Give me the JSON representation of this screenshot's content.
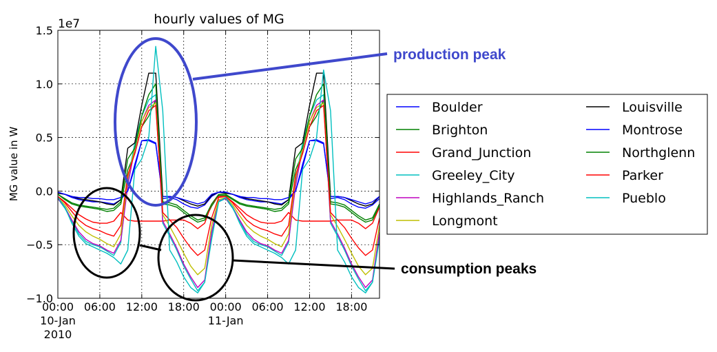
{
  "chart_data": {
    "type": "line",
    "title": "hourly values of MG",
    "ylabel": "MG value in W",
    "xlabel": "",
    "scale_label": "1e7",
    "ylim": [
      -1.0,
      1.5
    ],
    "xlim": [
      0,
      46
    ],
    "grid": true,
    "legend_placement": "right, outside plot",
    "y_ticks": [
      {
        "value": -1.0,
        "label": "−1.0"
      },
      {
        "value": -0.5,
        "label": "−0.5"
      },
      {
        "value": 0.0,
        "label": "0.0"
      },
      {
        "value": 0.5,
        "label": "0.5"
      },
      {
        "value": 1.0,
        "label": "1.0"
      },
      {
        "value": 1.5,
        "label": "1.5"
      }
    ],
    "x_ticks": [
      {
        "hour": 0,
        "label": "00:00",
        "sub": [
          "10-Jan",
          "2010"
        ]
      },
      {
        "hour": 6,
        "label": "06:00",
        "sub": []
      },
      {
        "hour": 12,
        "label": "12:00",
        "sub": []
      },
      {
        "hour": 18,
        "label": "18:00",
        "sub": []
      },
      {
        "hour": 24,
        "label": "00:00",
        "sub": [
          "11-Jan"
        ]
      },
      {
        "hour": 30,
        "label": "06:00",
        "sub": []
      },
      {
        "hour": 36,
        "label": "12:00",
        "sub": []
      },
      {
        "hour": 42,
        "label": "18:00",
        "sub": []
      }
    ],
    "x": [
      0,
      1,
      2,
      3,
      4,
      5,
      6,
      7,
      8,
      9,
      10,
      11,
      12,
      13,
      14,
      15,
      16,
      17,
      18,
      19,
      20,
      21,
      22,
      23,
      24,
      25,
      26,
      27,
      28,
      29,
      30,
      31,
      32,
      33,
      34,
      35,
      36,
      37,
      38,
      39,
      40,
      41,
      42,
      43,
      44,
      45,
      46
    ],
    "series": [
      {
        "name": "Boulder",
        "color": "#0000ff",
        "values": [
          -0.01,
          -0.03,
          -0.06,
          -0.08,
          -0.09,
          -0.1,
          -0.1,
          -0.11,
          -0.12,
          -0.08,
          0.0,
          0.25,
          0.47,
          0.48,
          0.45,
          -0.07,
          -0.06,
          -0.08,
          -0.12,
          -0.15,
          -0.16,
          -0.13,
          -0.05,
          -0.01,
          -0.01,
          -0.03,
          -0.06,
          -0.08,
          -0.09,
          -0.1,
          -0.1,
          -0.11,
          -0.12,
          -0.08,
          0.0,
          0.25,
          0.47,
          0.48,
          0.45,
          -0.07,
          -0.06,
          -0.08,
          -0.12,
          -0.15,
          -0.16,
          -0.13,
          -0.07
        ]
      },
      {
        "name": "Brighton",
        "color": "#008000",
        "values": [
          -0.03,
          -0.08,
          -0.12,
          -0.14,
          -0.15,
          -0.16,
          -0.17,
          -0.19,
          -0.18,
          -0.12,
          0.2,
          0.35,
          0.6,
          0.7,
          0.85,
          -0.12,
          -0.13,
          -0.15,
          -0.2,
          -0.25,
          -0.29,
          -0.27,
          -0.14,
          -0.04,
          -0.04,
          -0.08,
          -0.12,
          -0.14,
          -0.15,
          -0.16,
          -0.17,
          -0.19,
          -0.18,
          -0.12,
          0.2,
          0.35,
          0.6,
          0.7,
          0.85,
          -0.12,
          -0.13,
          -0.15,
          -0.2,
          -0.25,
          -0.29,
          -0.27,
          -0.14
        ]
      },
      {
        "name": "Grand_Junction",
        "color": "#ff0000",
        "values": [
          -0.05,
          -0.1,
          -0.16,
          -0.22,
          -0.26,
          -0.29,
          -0.3,
          -0.3,
          -0.28,
          -0.2,
          -0.27,
          -0.28,
          -0.28,
          -0.28,
          -0.28,
          -0.28,
          -0.27,
          -0.27,
          -0.27,
          -0.3,
          -0.35,
          -0.3,
          -0.12,
          -0.05,
          -0.05,
          -0.1,
          -0.16,
          -0.22,
          -0.26,
          -0.29,
          -0.3,
          -0.3,
          -0.28,
          -0.2,
          -0.27,
          -0.28,
          -0.28,
          -0.28,
          -0.28,
          -0.28,
          -0.27,
          -0.27,
          -0.27,
          -0.3,
          -0.35,
          -0.3,
          -0.15
        ]
      },
      {
        "name": "Greeley_City",
        "color": "#00bfbf",
        "values": [
          -0.07,
          -0.16,
          -0.28,
          -0.4,
          -0.47,
          -0.5,
          -0.52,
          -0.56,
          -0.6,
          -0.48,
          0.1,
          0.45,
          0.7,
          0.85,
          0.9,
          -0.3,
          -0.42,
          -0.55,
          -0.7,
          -0.82,
          -0.93,
          -0.85,
          -0.4,
          -0.1,
          -0.07,
          -0.16,
          -0.28,
          -0.4,
          -0.47,
          -0.5,
          -0.52,
          -0.56,
          -0.6,
          -0.48,
          0.1,
          0.45,
          0.7,
          0.85,
          0.9,
          -0.3,
          -0.42,
          -0.55,
          -0.7,
          -0.82,
          -0.93,
          -0.85,
          -0.4
        ]
      },
      {
        "name": "Highlands_Ranch",
        "color": "#bf00bf",
        "values": [
          -0.07,
          -0.15,
          -0.27,
          -0.38,
          -0.45,
          -0.49,
          -0.51,
          -0.55,
          -0.58,
          -0.46,
          0.05,
          0.4,
          0.65,
          0.8,
          0.85,
          -0.28,
          -0.4,
          -0.53,
          -0.68,
          -0.8,
          -0.9,
          -0.83,
          -0.38,
          -0.09,
          -0.07,
          -0.15,
          -0.27,
          -0.38,
          -0.45,
          -0.49,
          -0.51,
          -0.55,
          -0.58,
          -0.46,
          0.05,
          0.4,
          0.65,
          0.8,
          0.85,
          -0.28,
          -0.4,
          -0.53,
          -0.68,
          -0.8,
          -0.9,
          -0.83,
          -0.38
        ]
      },
      {
        "name": "Longmont",
        "color": "#bfbf00",
        "values": [
          -0.06,
          -0.13,
          -0.23,
          -0.32,
          -0.38,
          -0.42,
          -0.45,
          -0.49,
          -0.52,
          -0.4,
          0.12,
          0.4,
          0.65,
          0.78,
          0.82,
          -0.22,
          -0.33,
          -0.45,
          -0.58,
          -0.7,
          -0.78,
          -0.72,
          -0.32,
          -0.08,
          -0.06,
          -0.13,
          -0.23,
          -0.32,
          -0.38,
          -0.42,
          -0.45,
          -0.49,
          -0.52,
          -0.4,
          0.12,
          0.4,
          0.65,
          0.78,
          0.82,
          -0.22,
          -0.33,
          -0.45,
          -0.58,
          -0.7,
          -0.78,
          -0.72,
          -0.32
        ]
      },
      {
        "name": "Louisville",
        "color": "#000000",
        "values": [
          -0.02,
          -0.03,
          -0.05,
          -0.07,
          -0.08,
          -0.09,
          -0.1,
          -0.12,
          -0.13,
          -0.08,
          0.4,
          0.45,
          0.8,
          1.1,
          1.1,
          -0.05,
          -0.05,
          -0.06,
          -0.09,
          -0.12,
          -0.14,
          -0.12,
          -0.04,
          -0.01,
          -0.02,
          -0.03,
          -0.05,
          -0.07,
          -0.08,
          -0.09,
          -0.1,
          -0.12,
          -0.13,
          -0.08,
          0.4,
          0.45,
          0.8,
          1.1,
          1.1,
          -0.05,
          -0.05,
          -0.06,
          -0.09,
          -0.12,
          -0.14,
          -0.12,
          -0.05
        ]
      },
      {
        "name": "Montrose",
        "color": "#0000ff",
        "values": [
          -0.01,
          -0.03,
          -0.05,
          -0.06,
          -0.06,
          -0.07,
          -0.07,
          -0.08,
          -0.08,
          -0.06,
          0.0,
          0.22,
          0.47,
          0.47,
          0.44,
          -0.05,
          -0.05,
          -0.06,
          -0.08,
          -0.1,
          -0.12,
          -0.1,
          -0.03,
          -0.01,
          -0.01,
          -0.03,
          -0.05,
          -0.06,
          -0.06,
          -0.07,
          -0.07,
          -0.08,
          -0.08,
          -0.06,
          0.0,
          0.22,
          0.47,
          0.47,
          0.44,
          -0.05,
          -0.05,
          -0.06,
          -0.08,
          -0.1,
          -0.12,
          -0.1,
          -0.05
        ]
      },
      {
        "name": "Northglenn",
        "color": "#008000",
        "values": [
          -0.03,
          -0.07,
          -0.11,
          -0.13,
          -0.14,
          -0.15,
          -0.16,
          -0.17,
          -0.16,
          -0.1,
          0.3,
          0.4,
          0.7,
          0.9,
          1.0,
          -0.1,
          -0.11,
          -0.13,
          -0.18,
          -0.23,
          -0.27,
          -0.25,
          -0.12,
          -0.03,
          -0.03,
          -0.07,
          -0.11,
          -0.13,
          -0.14,
          -0.15,
          -0.16,
          -0.17,
          -0.16,
          -0.1,
          0.3,
          0.4,
          0.7,
          0.9,
          1.0,
          -0.1,
          -0.11,
          -0.13,
          -0.18,
          -0.23,
          -0.27,
          -0.25,
          -0.12
        ]
      },
      {
        "name": "Parker",
        "color": "#ff0000",
        "values": [
          -0.05,
          -0.11,
          -0.19,
          -0.27,
          -0.32,
          -0.35,
          -0.37,
          -0.4,
          -0.42,
          -0.32,
          0.15,
          0.35,
          0.6,
          0.75,
          0.8,
          -0.2,
          -0.27,
          -0.34,
          -0.44,
          -0.53,
          -0.6,
          -0.55,
          -0.25,
          -0.06,
          -0.05,
          -0.11,
          -0.19,
          -0.27,
          -0.32,
          -0.35,
          -0.37,
          -0.4,
          -0.42,
          -0.32,
          0.15,
          0.35,
          0.6,
          0.75,
          0.8,
          -0.2,
          -0.27,
          -0.34,
          -0.44,
          -0.53,
          -0.6,
          -0.55,
          -0.25
        ]
      },
      {
        "name": "Pueblo",
        "color": "#00bfbf",
        "values": [
          -0.06,
          -0.15,
          -0.3,
          -0.42,
          -0.49,
          -0.52,
          -0.55,
          -0.58,
          -0.62,
          -0.68,
          -0.55,
          0.2,
          0.3,
          0.5,
          1.35,
          0.75,
          -0.55,
          -0.66,
          -0.8,
          -0.9,
          -0.95,
          -0.85,
          -0.45,
          -0.1,
          -0.06,
          -0.15,
          -0.3,
          -0.42,
          -0.49,
          -0.52,
          -0.55,
          -0.58,
          -0.62,
          -0.68,
          -0.55,
          0.2,
          0.3,
          0.5,
          1.13,
          0.75,
          -0.55,
          -0.66,
          -0.8,
          -0.9,
          -0.95,
          -0.85,
          -0.45
        ]
      }
    ],
    "annotations": {
      "production_peak": "production peak",
      "consumption_peaks": "consumption peaks",
      "production_color": "#3f48cc",
      "consumption_color": "#000000"
    }
  }
}
